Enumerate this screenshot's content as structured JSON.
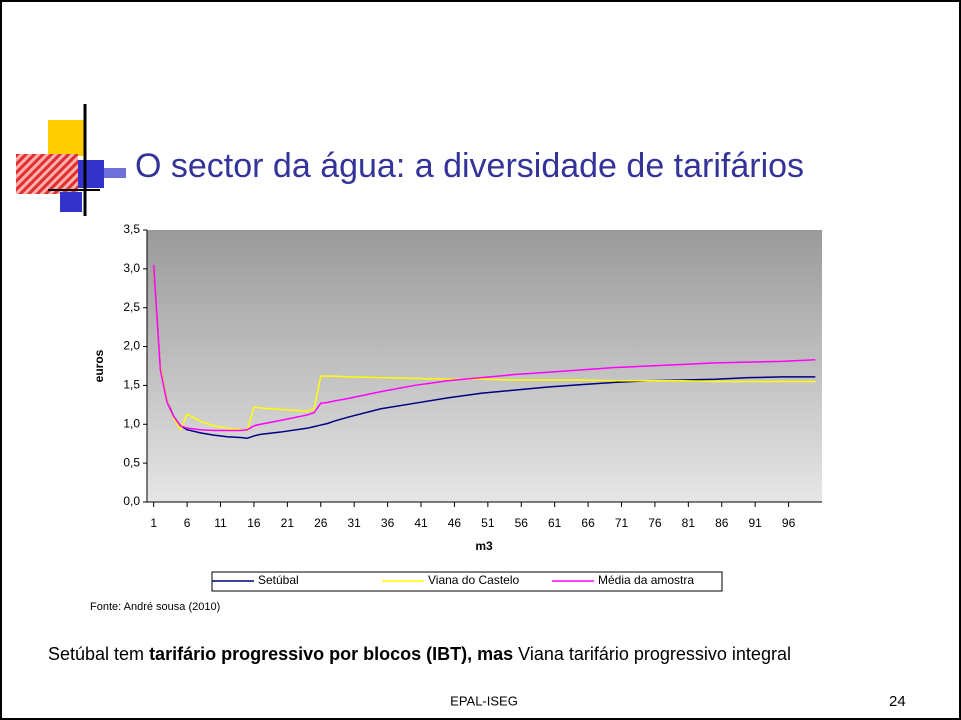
{
  "title": "O sector da água: a diversidade de tarifários",
  "source": "Fonte: André sousa (2010)",
  "body": {
    "lead": "Setúbal tem ",
    "bold": "tarifário progressivo por blocos (IBT), mas",
    "rest": " Viana tarifário progressivo integral"
  },
  "footer": "EPAL-ISEG",
  "page_number": "24",
  "chart_data": {
    "type": "line",
    "xlabel": "m3",
    "ylabel": "euros",
    "x": [
      1,
      2,
      3,
      4,
      5,
      6,
      8,
      10,
      12,
      14,
      15,
      16,
      17,
      20,
      24,
      25,
      26,
      27,
      28,
      30,
      35,
      40,
      45,
      50,
      55,
      60,
      65,
      70,
      75,
      80,
      85,
      90,
      95,
      100
    ],
    "xlim": [
      0,
      101
    ],
    "xticks": [
      1,
      6,
      11,
      16,
      21,
      26,
      31,
      36,
      41,
      46,
      51,
      56,
      61,
      66,
      71,
      76,
      81,
      86,
      91,
      96
    ],
    "ylim": [
      0,
      3.5
    ],
    "yticks": [
      {
        "value": 0,
        "label": "0,0"
      },
      {
        "value": 0.5,
        "label": "0,5"
      },
      {
        "value": 1,
        "label": "1,0"
      },
      {
        "value": 1.5,
        "label": "1,5"
      },
      {
        "value": 2,
        "label": "2,0"
      },
      {
        "value": 2.5,
        "label": "2,5"
      },
      {
        "value": 3,
        "label": "3,0"
      },
      {
        "value": 3.5,
        "label": "3,5"
      }
    ],
    "grid": false,
    "legend": "bottom",
    "series": [
      {
        "name": "Setúbal",
        "color": "#000080",
        "values": [
          3.0,
          1.75,
          1.3,
          1.1,
          0.98,
          0.93,
          0.89,
          0.86,
          0.84,
          0.83,
          0.82,
          0.85,
          0.87,
          0.9,
          0.95,
          0.97,
          0.99,
          1.01,
          1.04,
          1.09,
          1.2,
          1.27,
          1.34,
          1.4,
          1.44,
          1.48,
          1.51,
          1.54,
          1.56,
          1.57,
          1.58,
          1.6,
          1.61,
          1.61
        ]
      },
      {
        "name": "Viana do Castelo",
        "color": "#ffff00",
        "values": [
          3.0,
          1.75,
          1.3,
          1.08,
          0.93,
          1.13,
          1.04,
          0.98,
          0.95,
          0.93,
          0.92,
          1.22,
          1.21,
          1.19,
          1.17,
          1.2,
          1.62,
          1.62,
          1.62,
          1.61,
          1.6,
          1.59,
          1.58,
          1.58,
          1.57,
          1.57,
          1.57,
          1.56,
          1.56,
          1.56,
          1.55,
          1.55,
          1.55,
          1.55
        ]
      },
      {
        "name": "Média da amostra",
        "color": "#ff00ff",
        "values": [
          3.05,
          1.7,
          1.28,
          1.1,
          0.98,
          0.95,
          0.93,
          0.92,
          0.92,
          0.92,
          0.93,
          0.98,
          1.0,
          1.05,
          1.12,
          1.15,
          1.27,
          1.28,
          1.3,
          1.33,
          1.42,
          1.5,
          1.56,
          1.6,
          1.64,
          1.67,
          1.7,
          1.73,
          1.75,
          1.77,
          1.79,
          1.8,
          1.81,
          1.83
        ]
      }
    ]
  }
}
